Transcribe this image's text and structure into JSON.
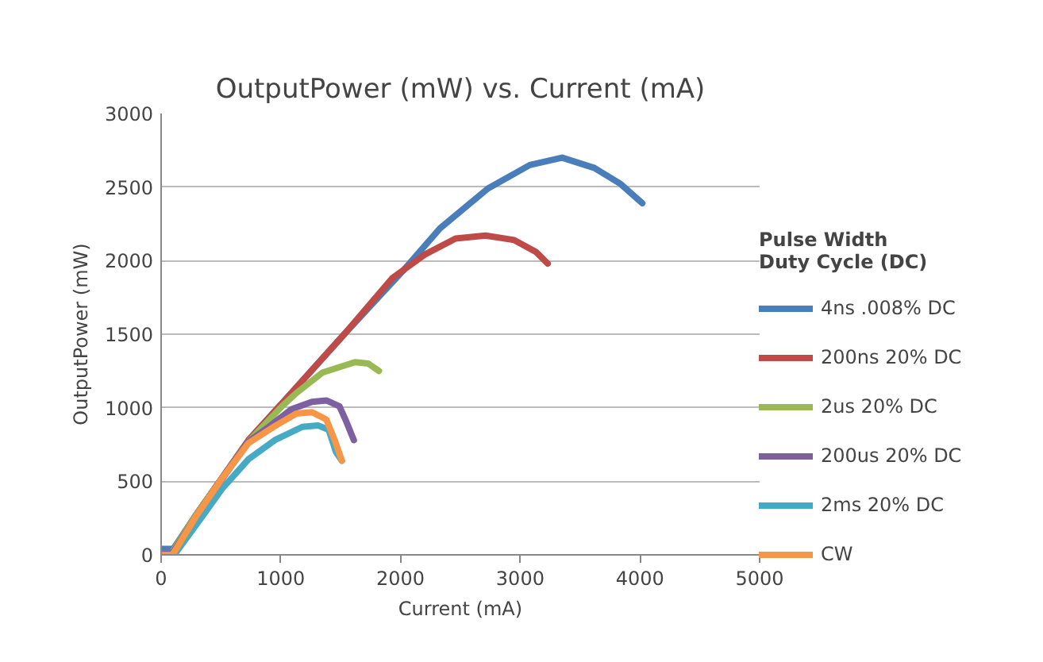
{
  "chart_data": {
    "type": "line",
    "title": "OutputPower (mW) vs. Current (mA)",
    "xlabel": "Current (mA)",
    "ylabel": "OutputPower (mW)",
    "legend_title": "Pulse Width\nDuty Cycle (DC)",
    "xlim": [
      0,
      5000
    ],
    "xticks": [
      0,
      1000,
      2000,
      3000,
      4000,
      5000
    ],
    "ylim": [
      0,
      3000
    ],
    "yticks": [
      0,
      500,
      1000,
      1500,
      2000,
      2500,
      3000
    ],
    "grid": "y",
    "legend": "right",
    "marker": "none",
    "line_style": "solid",
    "series": [
      {
        "name": "4ns .008% DC",
        "color": "#4a7ebb",
        "x": [
          0,
          90,
          110,
          290,
          730,
          1010,
          1530,
          2020,
          2330,
          2730,
          3080,
          3350,
          3620,
          3840,
          4020
        ],
        "values": [
          40,
          40,
          50,
          270,
          780,
          1030,
          1500,
          1930,
          2220,
          2490,
          2650,
          2700,
          2630,
          2520,
          2390
        ]
      },
      {
        "name": "200ns 20% DC",
        "color": "#be4b48",
        "x": [
          0,
          90,
          110,
          290,
          730,
          1010,
          1530,
          1930,
          2200,
          2460,
          2710,
          2950,
          3130,
          3230
        ],
        "values": [
          10,
          10,
          40,
          270,
          780,
          1030,
          1500,
          1880,
          2040,
          2150,
          2170,
          2140,
          2060,
          1980
        ]
      },
      {
        "name": "2us 20% DC",
        "color": "#98b954",
        "x": [
          0,
          90,
          110,
          290,
          730,
          1010,
          1130,
          1350,
          1620,
          1730,
          1820
        ],
        "values": [
          10,
          10,
          40,
          270,
          770,
          1010,
          1100,
          1240,
          1310,
          1300,
          1250
        ]
      },
      {
        "name": "200us 20% DC",
        "color": "#7d60a0",
        "x": [
          0,
          90,
          110,
          290,
          730,
          900,
          1090,
          1260,
          1380,
          1490,
          1550,
          1610
        ],
        "values": [
          10,
          10,
          30,
          260,
          770,
          870,
          990,
          1040,
          1050,
          1010,
          900,
          780
        ]
      },
      {
        "name": "2ms 20% DC",
        "color": "#46aac5",
        "x": [
          20,
          110,
          290,
          510,
          730,
          950,
          1180,
          1310,
          1400,
          1460,
          1510
        ],
        "values": [
          0,
          0,
          200,
          450,
          650,
          780,
          870,
          880,
          850,
          700,
          640
        ]
      },
      {
        "name": "CW",
        "color": "#f79646",
        "x": [
          0,
          90,
          110,
          290,
          510,
          730,
          960,
          1130,
          1260,
          1380,
          1450,
          1510
        ],
        "values": [
          0,
          0,
          20,
          260,
          520,
          760,
          880,
          960,
          970,
          920,
          780,
          640
        ]
      }
    ]
  }
}
